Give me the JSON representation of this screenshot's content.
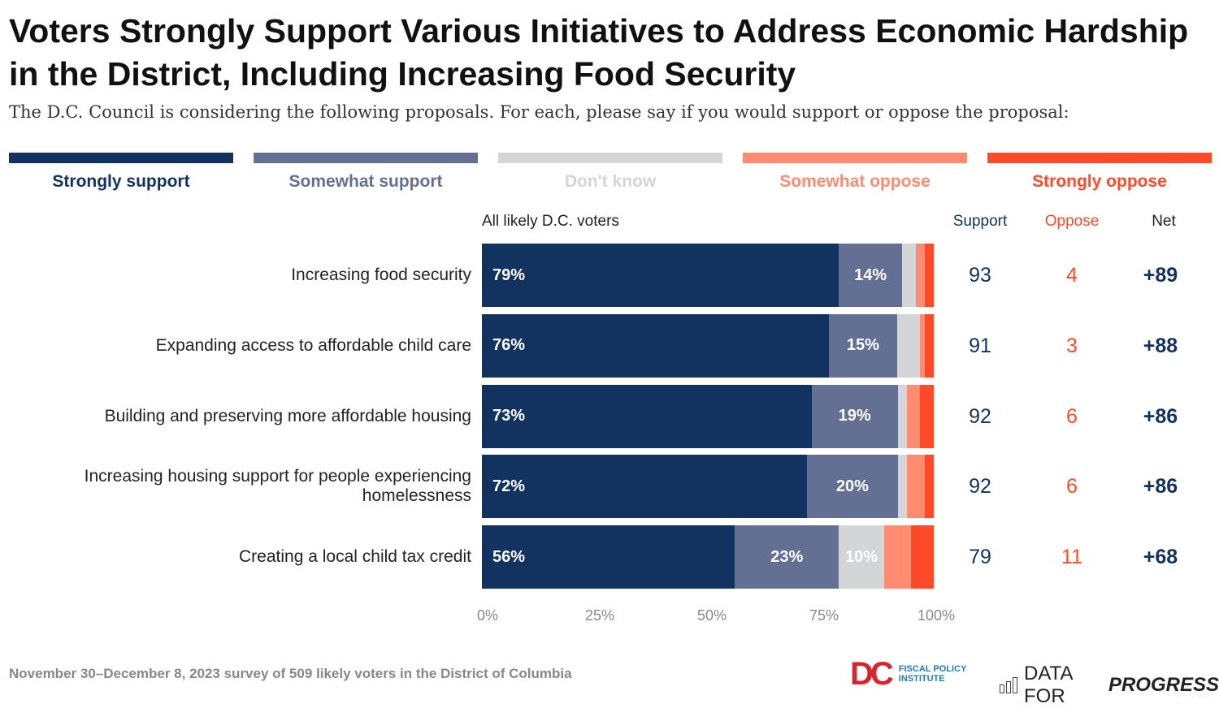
{
  "title": "Voters Strongly Support Various Initiatives to Address Economic Hardship in the District, Including Increasing Food Security",
  "subtitle": "The D.C. Council is considering the following proposals. For each, please say if you would support or oppose the proposal:",
  "chart_data": {
    "type": "bar",
    "orientation": "horizontal-stacked",
    "group_label": "All likely D.C. voters",
    "categories": [
      "Increasing food security",
      "Expanding access to affordable child care",
      "Building and preserving more affordable housing",
      "Increasing housing support for people experiencing homelessness",
      "Creating a local child tax credit"
    ],
    "series": [
      {
        "name": "Strongly support",
        "color": "#12335f",
        "values": [
          79,
          76,
          73,
          72,
          56
        ]
      },
      {
        "name": "Somewhat support",
        "color": "#637093",
        "values": [
          14,
          15,
          19,
          20,
          23
        ]
      },
      {
        "name": "Don't know",
        "color": "#d4d5d7",
        "values": [
          3,
          5,
          2,
          2,
          10
        ]
      },
      {
        "name": "Somewhat oppose",
        "color": "#ff8b70",
        "values": [
          2,
          1,
          3,
          4,
          6
        ]
      },
      {
        "name": "Strongly oppose",
        "color": "#ff4a2a",
        "values": [
          2,
          2,
          3,
          2,
          5
        ]
      }
    ],
    "data_labels": [
      [
        "79%",
        "14%"
      ],
      [
        "76%",
        "15%"
      ],
      [
        "73%",
        "19%"
      ],
      [
        "72%",
        "20%"
      ],
      [
        "56%",
        "23%",
        "10%"
      ]
    ],
    "xlim": [
      0,
      100
    ],
    "xticks": [
      "0%",
      "25%",
      "50%",
      "75%",
      "100%"
    ],
    "legend": "top",
    "columns": {
      "headers": [
        "Support",
        "Oppose",
        "Net"
      ],
      "support": [
        "93",
        "91",
        "92",
        "92",
        "79"
      ],
      "oppose": [
        "4",
        "3",
        "6",
        "6",
        "11"
      ],
      "net": [
        "+89",
        "+88",
        "+86",
        "+86",
        "+68"
      ]
    }
  },
  "footer": "November 30–December 8, 2023 survey of 509 likely voters in the District of Columbia",
  "logos": {
    "dcfpi": "FISCAL POLICY INSTITUTE",
    "dfp_a": "DATA FOR",
    "dfp_b": "PROGRESS",
    "id": "ID: TAGQDY"
  }
}
